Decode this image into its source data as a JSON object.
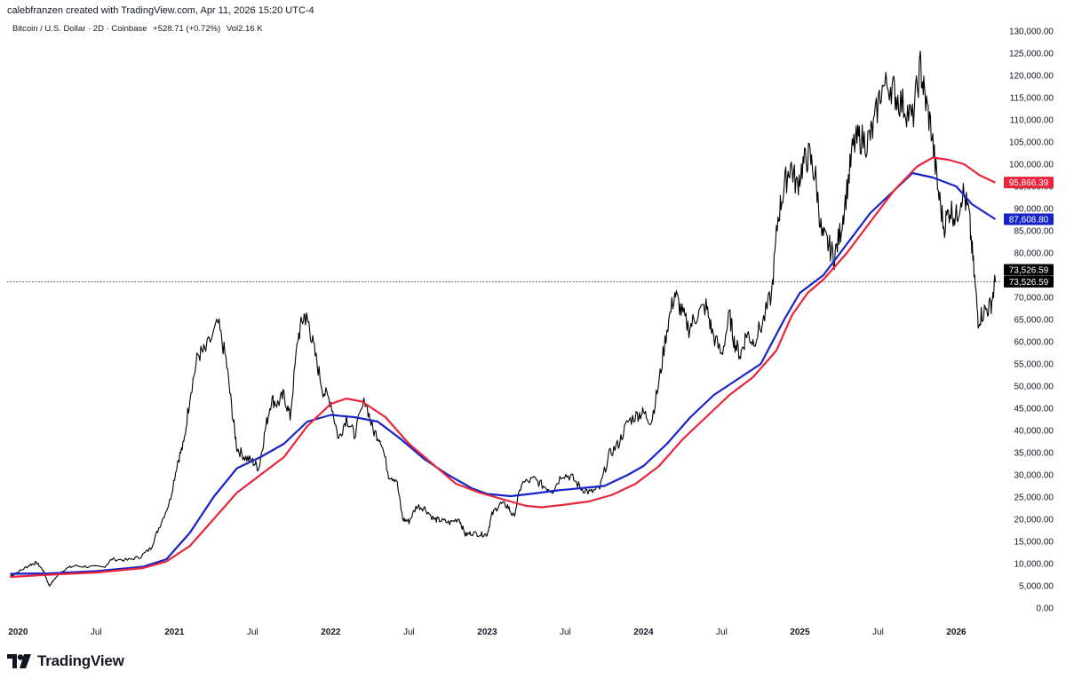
{
  "header": {
    "credit": "calebfranzen created with TradingView.com, Apr 11, 2026 15:20 UTC-4",
    "symbol": "Bitcoin / U.S. Dollar · 2D · Coinbase",
    "change": "+528.71 (+0.72%)",
    "volume": "Vol2.16 K"
  },
  "branding": {
    "name": "TradingView"
  },
  "colors": {
    "price": "#000000",
    "ma_blue": "#1722c7",
    "ma_red": "#e8253a",
    "last_price_tag": "#000000"
  },
  "chart_data": {
    "type": "line",
    "ylim": [
      0,
      130000
    ],
    "y_ticks": [
      "130,000.00",
      "125,000.00",
      "120,000.00",
      "115,000.00",
      "110,000.00",
      "105,000.00",
      "100,000.00",
      "95,000.00",
      "90,000.00",
      "85,000.00",
      "80,000.00",
      "75,000.00",
      "70,000.00",
      "65,000.00",
      "60,000.00",
      "55,000.00",
      "50,000.00",
      "45,000.00",
      "40,000.00",
      "35,000.00",
      "30,000.00",
      "25,000.00",
      "20,000.00",
      "15,000.00",
      "10,000.00",
      "5,000.00",
      "0.00"
    ],
    "x_ticks": [
      {
        "label": "2020",
        "t": 2020.0,
        "year": true
      },
      {
        "label": "Jul",
        "t": 2020.5,
        "year": false
      },
      {
        "label": "2021",
        "t": 2021.0,
        "year": true
      },
      {
        "label": "Jul",
        "t": 2021.5,
        "year": false
      },
      {
        "label": "2022",
        "t": 2022.0,
        "year": true
      },
      {
        "label": "Jul",
        "t": 2022.5,
        "year": false
      },
      {
        "label": "2023",
        "t": 2023.0,
        "year": true
      },
      {
        "label": "Jul",
        "t": 2023.5,
        "year": false
      },
      {
        "label": "2024",
        "t": 2024.0,
        "year": true
      },
      {
        "label": "Jul",
        "t": 2024.5,
        "year": false
      },
      {
        "label": "2025",
        "t": 2025.0,
        "year": true
      },
      {
        "label": "Jul",
        "t": 2025.5,
        "year": false
      },
      {
        "label": "2026",
        "t": 2026.0,
        "year": true
      }
    ],
    "xlim": [
      2019.93,
      2026.27
    ],
    "series": [
      {
        "color": "#000000",
        "points": [
          [
            2019.95,
            7200
          ],
          [
            2020.02,
            8500
          ],
          [
            2020.08,
            9800
          ],
          [
            2020.12,
            10200
          ],
          [
            2020.16,
            8500
          ],
          [
            2020.2,
            5000
          ],
          [
            2020.24,
            6800
          ],
          [
            2020.3,
            8800
          ],
          [
            2020.36,
            9500
          ],
          [
            2020.45,
            9300
          ],
          [
            2020.55,
            9200
          ],
          [
            2020.6,
            11000
          ],
          [
            2020.7,
            10800
          ],
          [
            2020.78,
            11500
          ],
          [
            2020.85,
            13500
          ],
          [
            2020.9,
            18000
          ],
          [
            2020.97,
            24000
          ],
          [
            2021.02,
            33000
          ],
          [
            2021.06,
            37000
          ],
          [
            2021.1,
            48000
          ],
          [
            2021.15,
            57000
          ],
          [
            2021.2,
            58000
          ],
          [
            2021.28,
            64000
          ],
          [
            2021.33,
            56000
          ],
          [
            2021.37,
            44000
          ],
          [
            2021.4,
            36000
          ],
          [
            2021.45,
            34000
          ],
          [
            2021.5,
            33000
          ],
          [
            2021.54,
            31500
          ],
          [
            2021.58,
            40000
          ],
          [
            2021.62,
            47000
          ],
          [
            2021.66,
            46000
          ],
          [
            2021.7,
            48000
          ],
          [
            2021.74,
            43000
          ],
          [
            2021.79,
            61000
          ],
          [
            2021.83,
            66000
          ],
          [
            2021.86,
            64000
          ],
          [
            2021.9,
            57000
          ],
          [
            2021.95,
            49000
          ],
          [
            2022.0,
            46500
          ],
          [
            2022.05,
            38000
          ],
          [
            2022.1,
            43000
          ],
          [
            2022.15,
            39000
          ],
          [
            2022.22,
            47000
          ],
          [
            2022.27,
            40000
          ],
          [
            2022.32,
            38000
          ],
          [
            2022.37,
            30000
          ],
          [
            2022.42,
            29000
          ],
          [
            2022.46,
            20000
          ],
          [
            2022.5,
            19500
          ],
          [
            2022.55,
            23000
          ],
          [
            2022.6,
            22500
          ],
          [
            2022.66,
            20000
          ],
          [
            2022.7,
            19800
          ],
          [
            2022.76,
            19200
          ],
          [
            2022.82,
            20200
          ],
          [
            2022.86,
            16500
          ],
          [
            2022.9,
            16900
          ],
          [
            2022.96,
            16600
          ],
          [
            2023.0,
            16600
          ],
          [
            2023.03,
            21000
          ],
          [
            2023.08,
            23500
          ],
          [
            2023.13,
            23000
          ],
          [
            2023.17,
            20500
          ],
          [
            2023.22,
            28000
          ],
          [
            2023.3,
            29000
          ],
          [
            2023.36,
            27500
          ],
          [
            2023.42,
            26500
          ],
          [
            2023.48,
            30200
          ],
          [
            2023.54,
            29500
          ],
          [
            2023.6,
            27000
          ],
          [
            2023.66,
            26000
          ],
          [
            2023.72,
            27000
          ],
          [
            2023.78,
            34500
          ],
          [
            2023.84,
            37000
          ],
          [
            2023.9,
            42000
          ],
          [
            2023.96,
            43500
          ],
          [
            2024.0,
            44000
          ],
          [
            2024.05,
            42000
          ],
          [
            2024.1,
            51000
          ],
          [
            2024.15,
            63000
          ],
          [
            2024.2,
            71000
          ],
          [
            2024.24,
            67000
          ],
          [
            2024.29,
            63000
          ],
          [
            2024.34,
            66000
          ],
          [
            2024.4,
            68000
          ],
          [
            2024.44,
            62000
          ],
          [
            2024.5,
            57000
          ],
          [
            2024.55,
            66000
          ],
          [
            2024.58,
            60000
          ],
          [
            2024.62,
            57000
          ],
          [
            2024.66,
            62000
          ],
          [
            2024.7,
            60000
          ],
          [
            2024.76,
            64000
          ],
          [
            2024.82,
            71000
          ],
          [
            2024.86,
            88000
          ],
          [
            2024.9,
            95000
          ],
          [
            2024.94,
            100000
          ],
          [
            2024.98,
            95000
          ],
          [
            2025.02,
            100000
          ],
          [
            2025.06,
            102000
          ],
          [
            2025.1,
            97000
          ],
          [
            2025.14,
            84000
          ],
          [
            2025.18,
            82000
          ],
          [
            2025.22,
            79000
          ],
          [
            2025.26,
            85000
          ],
          [
            2025.3,
            94000
          ],
          [
            2025.34,
            104000
          ],
          [
            2025.38,
            106000
          ],
          [
            2025.43,
            105000
          ],
          [
            2025.47,
            108000
          ],
          [
            2025.52,
            117000
          ],
          [
            2025.58,
            118000
          ],
          [
            2025.62,
            115000
          ],
          [
            2025.67,
            113000
          ],
          [
            2025.72,
            110000
          ],
          [
            2025.77,
            122000
          ],
          [
            2025.8,
            115000
          ],
          [
            2025.84,
            108000
          ],
          [
            2025.88,
            95000
          ],
          [
            2025.92,
            86000
          ],
          [
            2025.96,
            90000
          ],
          [
            2026.0,
            88000
          ],
          [
            2026.04,
            94000
          ],
          [
            2026.08,
            89000
          ],
          [
            2026.11,
            77000
          ],
          [
            2026.14,
            65000
          ],
          [
            2026.18,
            67000
          ],
          [
            2026.22,
            68000
          ],
          [
            2026.25,
            73526
          ]
        ]
      },
      {
        "color": "#1722c7",
        "points": [
          [
            2019.95,
            7700
          ],
          [
            2020.2,
            7800
          ],
          [
            2020.5,
            8300
          ],
          [
            2020.8,
            9300
          ],
          [
            2020.95,
            11000
          ],
          [
            2021.1,
            17000
          ],
          [
            2021.25,
            25000
          ],
          [
            2021.4,
            31500
          ],
          [
            2021.55,
            34000
          ],
          [
            2021.7,
            37000
          ],
          [
            2021.85,
            42000
          ],
          [
            2022.0,
            43500
          ],
          [
            2022.15,
            43000
          ],
          [
            2022.3,
            42000
          ],
          [
            2022.45,
            38000
          ],
          [
            2022.6,
            33500
          ],
          [
            2022.75,
            30000
          ],
          [
            2022.9,
            27000
          ],
          [
            2023.0,
            25700
          ],
          [
            2023.15,
            25200
          ],
          [
            2023.3,
            25800
          ],
          [
            2023.45,
            26500
          ],
          [
            2023.6,
            27000
          ],
          [
            2023.75,
            27500
          ],
          [
            2023.9,
            30000
          ],
          [
            2024.0,
            32000
          ],
          [
            2024.15,
            37000
          ],
          [
            2024.3,
            43000
          ],
          [
            2024.45,
            48000
          ],
          [
            2024.6,
            51500
          ],
          [
            2024.75,
            55000
          ],
          [
            2024.9,
            65000
          ],
          [
            2025.0,
            71000
          ],
          [
            2025.15,
            75000
          ],
          [
            2025.3,
            82000
          ],
          [
            2025.45,
            89000
          ],
          [
            2025.6,
            94000
          ],
          [
            2025.72,
            98000
          ],
          [
            2025.85,
            97000
          ],
          [
            2026.0,
            95000
          ],
          [
            2026.1,
            91000
          ],
          [
            2026.25,
            87608
          ]
        ]
      },
      {
        "color": "#e8253a",
        "points": [
          [
            2019.95,
            7000
          ],
          [
            2020.2,
            7500
          ],
          [
            2020.5,
            8000
          ],
          [
            2020.8,
            9000
          ],
          [
            2020.95,
            10500
          ],
          [
            2021.1,
            14000
          ],
          [
            2021.25,
            20000
          ],
          [
            2021.4,
            26000
          ],
          [
            2021.55,
            30000
          ],
          [
            2021.7,
            34000
          ],
          [
            2021.85,
            41000
          ],
          [
            2022.0,
            46000
          ],
          [
            2022.1,
            47200
          ],
          [
            2022.2,
            46500
          ],
          [
            2022.35,
            43000
          ],
          [
            2022.5,
            37000
          ],
          [
            2022.65,
            32500
          ],
          [
            2022.8,
            28000
          ],
          [
            2022.95,
            26000
          ],
          [
            2023.1,
            24500
          ],
          [
            2023.25,
            23000
          ],
          [
            2023.35,
            22700
          ],
          [
            2023.5,
            23300
          ],
          [
            2023.65,
            24000
          ],
          [
            2023.8,
            25500
          ],
          [
            2023.95,
            28000
          ],
          [
            2024.1,
            32000
          ],
          [
            2024.25,
            38000
          ],
          [
            2024.4,
            43000
          ],
          [
            2024.55,
            48000
          ],
          [
            2024.7,
            52000
          ],
          [
            2024.85,
            58000
          ],
          [
            2024.95,
            66000
          ],
          [
            2025.05,
            71000
          ],
          [
            2025.15,
            74000
          ],
          [
            2025.3,
            80000
          ],
          [
            2025.45,
            87000
          ],
          [
            2025.6,
            94000
          ],
          [
            2025.75,
            99500
          ],
          [
            2025.85,
            101500
          ],
          [
            2025.95,
            101000
          ],
          [
            2026.05,
            100000
          ],
          [
            2026.15,
            97500
          ],
          [
            2026.25,
            95866
          ]
        ]
      }
    ],
    "price_tags": [
      {
        "label": "95,866.39",
        "value": 95866.39,
        "color": "#e8253a"
      },
      {
        "label": "87,608.80",
        "value": 87608.8,
        "color": "#1722c7"
      },
      {
        "label": "73,526.59",
        "value": 76200,
        "color": "#000000"
      },
      {
        "label": "73,526.59",
        "value": 73526.59,
        "color": "#000000"
      }
    ],
    "last_price": 73526.59
  }
}
